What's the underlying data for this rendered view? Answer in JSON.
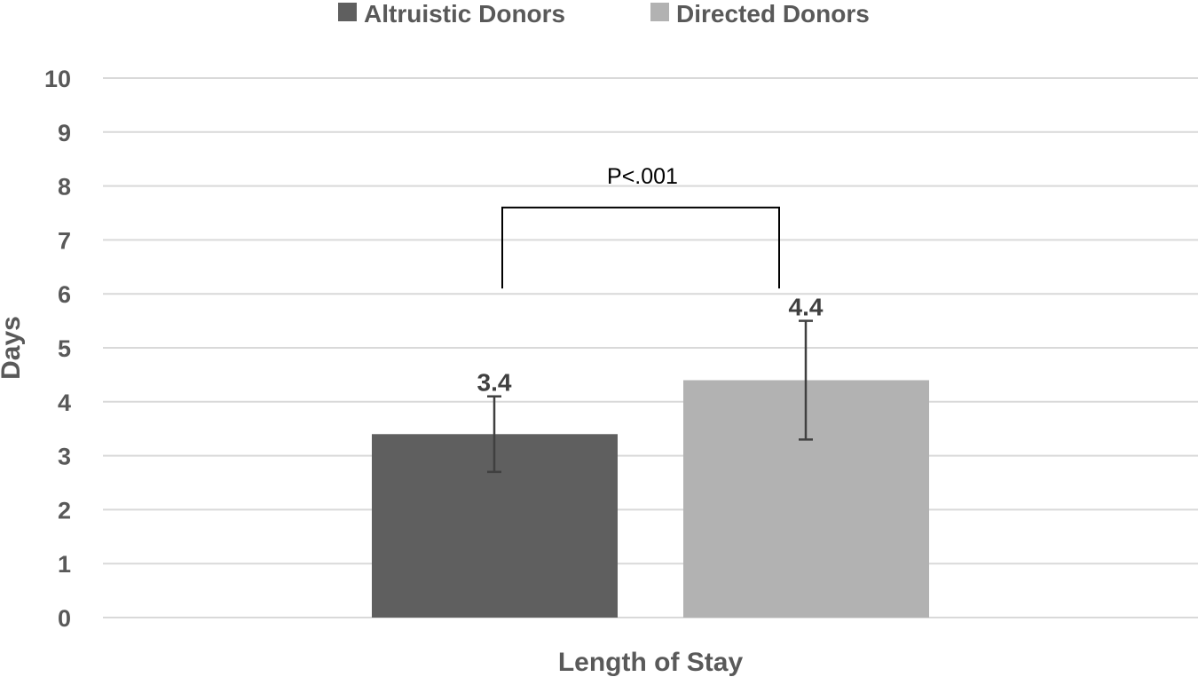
{
  "chart_data": {
    "type": "bar",
    "categories": [
      "Length of Stay"
    ],
    "xlabel": "Length of Stay",
    "ylabel": "Days",
    "ylim": [
      0,
      10
    ],
    "yticks": [
      "0",
      "1",
      "2",
      "3",
      "4",
      "5",
      "6",
      "7",
      "8",
      "9",
      "10"
    ],
    "grid": true,
    "legend_position": "top",
    "series": [
      {
        "name": "Altruistic Donors",
        "values": [
          3.4
        ],
        "error_low": [
          2.7
        ],
        "error_high": [
          4.1
        ],
        "label": "3.4",
        "color": "#5f5f5f"
      },
      {
        "name": "Directed Donors",
        "values": [
          4.4
        ],
        "error_low": [
          3.3
        ],
        "error_high": [
          5.5
        ],
        "label": "4.4",
        "color": "#b2b2b2"
      }
    ],
    "annotation": {
      "text": "P<.001",
      "bracket_y": 7.6,
      "bracket_bottom": 6.1
    }
  }
}
